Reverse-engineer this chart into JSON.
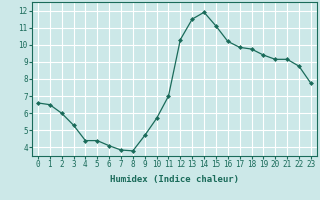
{
  "x": [
    0,
    1,
    2,
    3,
    4,
    5,
    6,
    7,
    8,
    9,
    10,
    11,
    12,
    13,
    14,
    15,
    16,
    17,
    18,
    19,
    20,
    21,
    22,
    23
  ],
  "y": [
    6.6,
    6.5,
    6.0,
    5.3,
    4.4,
    4.4,
    4.1,
    3.85,
    3.8,
    4.7,
    5.7,
    7.0,
    10.3,
    11.5,
    11.9,
    11.1,
    10.2,
    9.85,
    9.75,
    9.4,
    9.15,
    9.15,
    8.75,
    7.75
  ],
  "line_color": "#1a6b5a",
  "marker": "D",
  "marker_size": 2.0,
  "bg_color": "#cce8e8",
  "grid_color": "#ffffff",
  "xlabel": "Humidex (Indice chaleur)",
  "xlim": [
    -0.5,
    23.5
  ],
  "ylim": [
    3.5,
    12.5
  ],
  "yticks": [
    4,
    5,
    6,
    7,
    8,
    9,
    10,
    11,
    12
  ],
  "xticks": [
    0,
    1,
    2,
    3,
    4,
    5,
    6,
    7,
    8,
    9,
    10,
    11,
    12,
    13,
    14,
    15,
    16,
    17,
    18,
    19,
    20,
    21,
    22,
    23
  ],
  "tick_fontsize": 5.5,
  "xlabel_fontsize": 6.5,
  "linewidth": 0.9
}
